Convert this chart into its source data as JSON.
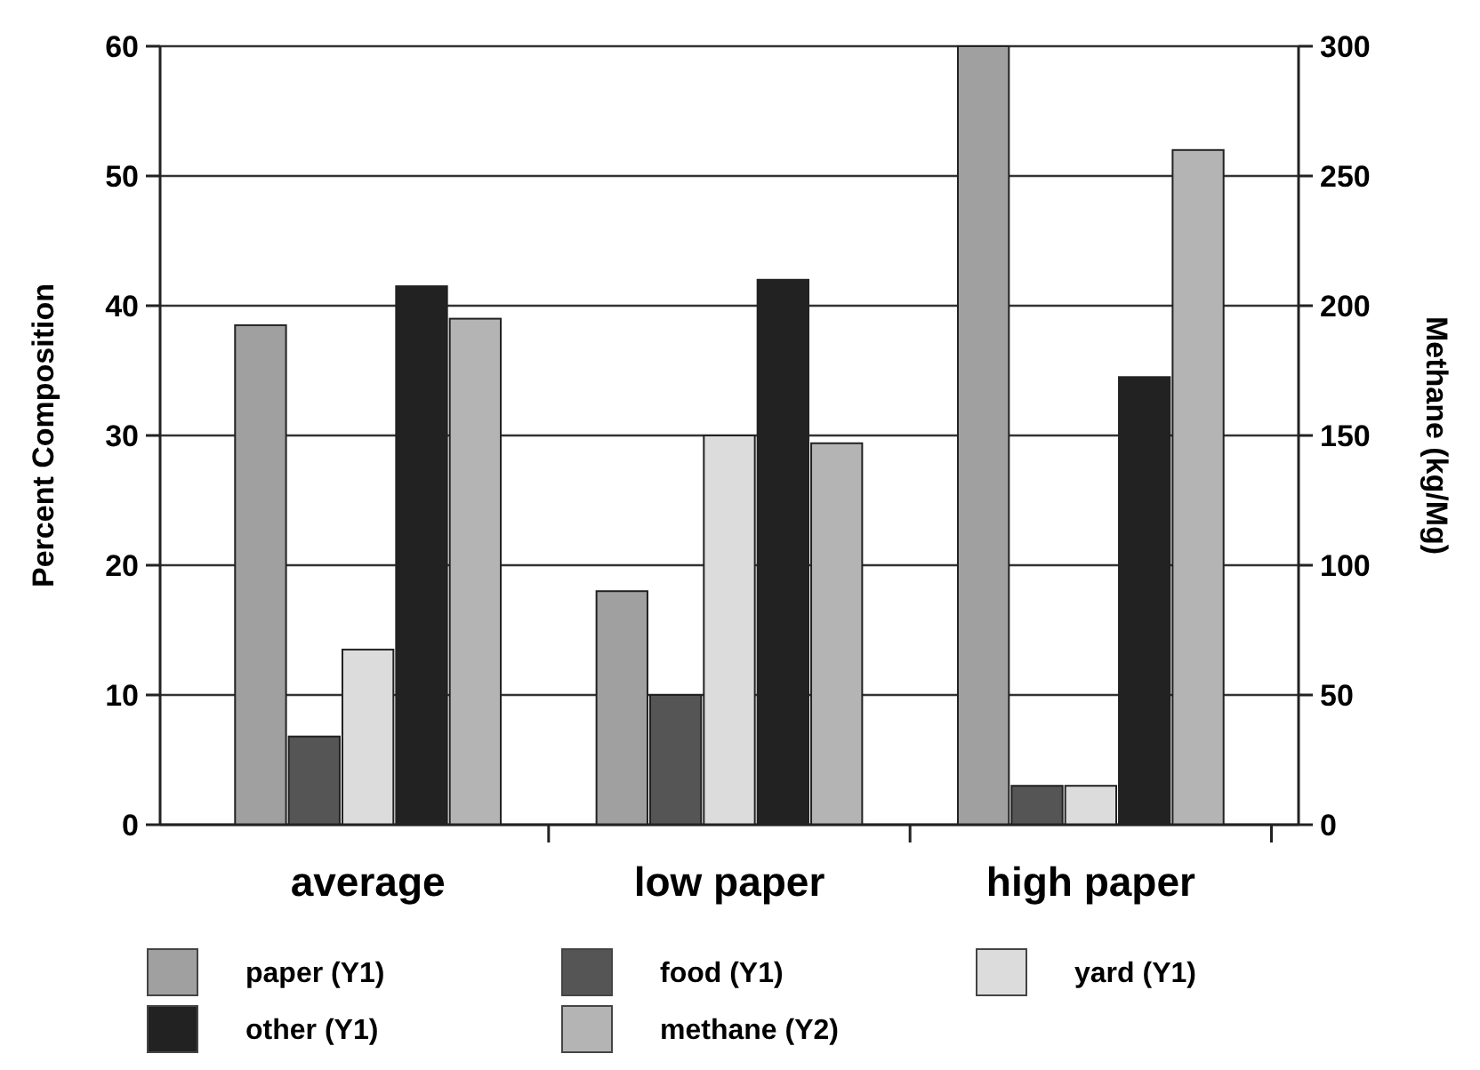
{
  "chart_data": {
    "type": "bar",
    "categories": [
      "average",
      "low paper",
      "high paper"
    ],
    "series": [
      {
        "name": "paper (Y1)",
        "color": "#a0a0a0",
        "values": [
          38.5,
          18,
          60
        ]
      },
      {
        "name": "food (Y1)",
        "color": "#555555",
        "values": [
          6.8,
          10,
          3
        ]
      },
      {
        "name": "yard (Y1)",
        "color": "#dcdcdc",
        "values": [
          13.5,
          30,
          3
        ]
      },
      {
        "name": "other (Y1)",
        "color": "#222222",
        "values": [
          41.5,
          42,
          34.5
        ]
      },
      {
        "name": "methane (Y2)",
        "color": "#b4b4b4",
        "values": [
          195,
          147,
          260
        ],
        "axis": "y2"
      }
    ],
    "ylabel": "Percent Composition",
    "y2label": "Methane (kg/Mg)",
    "ylim": [
      0,
      60
    ],
    "yticks": [
      0,
      10,
      20,
      30,
      40,
      50,
      60
    ],
    "y2lim": [
      0,
      300
    ],
    "y2ticks": [
      0,
      50,
      100,
      150,
      200,
      250,
      300
    ],
    "grid": "y",
    "legend": "bottom"
  }
}
